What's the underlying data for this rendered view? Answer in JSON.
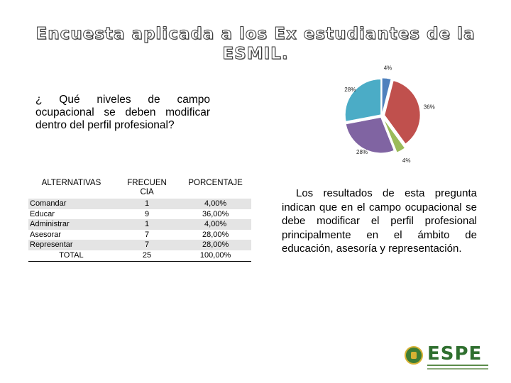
{
  "title": "Encuesta aplicada a los Ex estudiantes de la ESMIL.",
  "question": "¿ Qué niveles de campo ocupacional se deben modificar dentro del perfil profesional?",
  "chart_data": {
    "type": "pie",
    "categories": [
      "Comandar",
      "Educar",
      "Administrar",
      "Asesorar",
      "Representar"
    ],
    "values": [
      4,
      36,
      4,
      28,
      28
    ],
    "labels": [
      "4%",
      "36%",
      "4%",
      "28%",
      "28%"
    ],
    "colors": [
      "#4f81bd",
      "#c0504d",
      "#9bbb59",
      "#8064a2",
      "#4bacc6"
    ]
  },
  "table": {
    "headers": [
      "ALTERNATIVAS",
      "FRECUENCIA",
      "PORCENTAJE"
    ],
    "rows": [
      [
        "Comandar",
        "1",
        "4,00%"
      ],
      [
        "Educar",
        "9",
        "36,00%"
      ],
      [
        "Administrar",
        "1",
        "4,00%"
      ],
      [
        "Asesorar",
        "7",
        "28,00%"
      ],
      [
        "Representar",
        "7",
        "28,00%"
      ]
    ],
    "total": [
      "TOTAL",
      "25",
      "100,00%"
    ]
  },
  "conclusion": "Los resultados de esta pregunta indican que en el campo ocupacional se debe modificar el perfil profesional principalmente en el ámbito de educación, asesoría y representación.",
  "logo": {
    "text": "ESPE"
  }
}
